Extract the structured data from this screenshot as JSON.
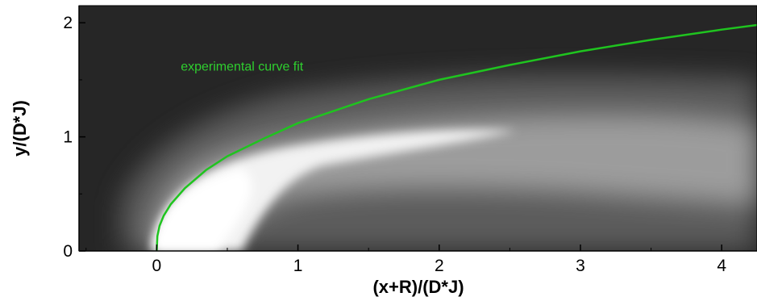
{
  "chart_data": {
    "type": "heatmap",
    "title": "",
    "xlabel": "(x+R)/(D*J)",
    "ylabel": "y/(D*J)",
    "xlim": [
      -0.55,
      4.25
    ],
    "ylim": [
      0,
      2.15
    ],
    "x_ticks": [
      0,
      1,
      2,
      3,
      4
    ],
    "y_ticks": [
      0,
      1,
      2
    ],
    "x_tick_labels": [
      "0",
      "1",
      "2",
      "3",
      "4"
    ],
    "y_tick_labels": [
      "0",
      "1",
      "2"
    ],
    "grid": false,
    "colormap": "grayscale",
    "colors": {
      "background": "#262626",
      "curve": "#1fc41f",
      "annotation": "#2fcf2f"
    },
    "annotation": {
      "text": "experimental curve fit",
      "x": 0.17,
      "y": 1.58
    },
    "series": [
      {
        "type": "line",
        "x": [
          0,
          0.005,
          0.02,
          0.05,
          0.1,
          0.2,
          0.35,
          0.5,
          0.75,
          1.0,
          1.5,
          2.0,
          2.5,
          3.0,
          3.5,
          4.0,
          4.25
        ],
        "y": [
          0,
          0.13,
          0.22,
          0.31,
          0.41,
          0.55,
          0.71,
          0.83,
          0.98,
          1.12,
          1.33,
          1.5,
          1.63,
          1.75,
          1.85,
          1.94,
          1.98
        ]
      }
    ]
  }
}
